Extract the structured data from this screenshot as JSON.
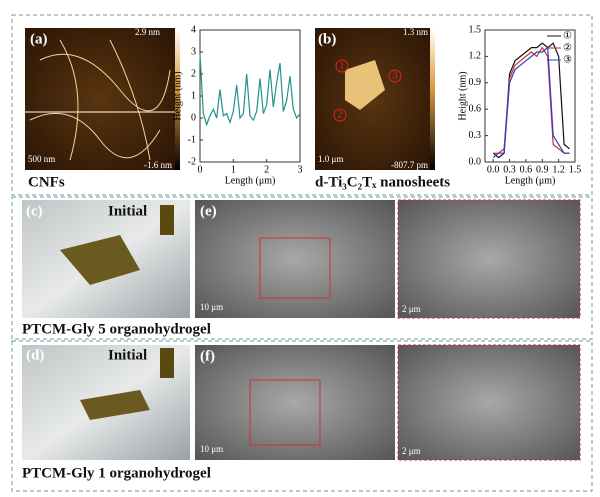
{
  "panels": {
    "a": {
      "label": "(a)",
      "scale_max": "2.9 nm",
      "scale_min": "-1.6 nm",
      "scale_bar": "500 nm",
      "caption": "CNFs"
    },
    "b": {
      "label": "(b)",
      "scale_max": "1.3 nm",
      "scale_min": "-807.7 pm",
      "scale_bar": "1.0 μm",
      "caption": "d-Ti₃C₂Tₓ nanosheets",
      "markers": [
        "1",
        "2",
        "3"
      ]
    },
    "c": {
      "label": "(c)",
      "note": "Initial"
    },
    "e": {
      "label": "(e)",
      "scale_bar": "10 μm",
      "zoom_scale_bar": "2 μm"
    },
    "row2_caption": "PTCM-Gly 5  organohydrogel",
    "d": {
      "label": "(d)",
      "note": "Initial"
    },
    "f": {
      "label": "(f)",
      "scale_bar": "10 μm",
      "zoom_scale_bar": "2 μm"
    },
    "row3_caption": "PTCM-Gly 1  organohydrogel"
  },
  "chart_data": [
    {
      "type": "line",
      "xlabel": "Length (μm)",
      "ylabel": "Height (nm)",
      "x": [
        0,
        0.1,
        0.2,
        0.3,
        0.4,
        0.5,
        0.6,
        0.7,
        0.8,
        0.9,
        1.0,
        1.1,
        1.2,
        1.3,
        1.4,
        1.5,
        1.6,
        1.7,
        1.8,
        1.9,
        2.0,
        2.1,
        2.2,
        2.3,
        2.4,
        2.5,
        2.6,
        2.7,
        2.8,
        2.9,
        3.0
      ],
      "series": [
        {
          "color": "#23928a",
          "values": [
            2.9,
            0.2,
            -0.3,
            0.1,
            0.4,
            0.0,
            1.3,
            0.1,
            0.2,
            -0.2,
            0.3,
            1.5,
            0.0,
            0.2,
            2.0,
            0.1,
            -0.1,
            0.3,
            1.8,
            0.2,
            0.6,
            2.2,
            0.5,
            1.6,
            2.5,
            0.3,
            0.8,
            1.9,
            0.4,
            0.0,
            0.2
          ]
        }
      ],
      "xlim": [
        0,
        3
      ],
      "xticks": [
        0,
        1,
        2,
        3
      ],
      "ylim": [
        -2,
        4
      ],
      "yticks": [
        -2,
        -1,
        0,
        1,
        2,
        3,
        4
      ]
    },
    {
      "type": "line",
      "xlabel": "Length (μm)",
      "ylabel": "Height (nm)",
      "x": [
        0.0,
        0.1,
        0.2,
        0.3,
        0.4,
        0.5,
        0.6,
        0.7,
        0.8,
        0.9,
        1.0,
        1.1,
        1.2,
        1.3,
        1.4
      ],
      "series": [
        {
          "name": "①",
          "color": "#111111",
          "values": [
            0.1,
            0.05,
            0.1,
            1.0,
            1.15,
            1.2,
            1.25,
            1.3,
            1.3,
            1.35,
            1.3,
            1.35,
            1.2,
            0.2,
            0.15
          ]
        },
        {
          "name": "②",
          "color": "#d62728",
          "values": [
            0.1,
            0.1,
            0.15,
            0.95,
            1.1,
            1.15,
            1.2,
            1.25,
            1.2,
            1.3,
            1.2,
            0.2,
            0.15,
            0.1,
            0.1
          ]
        },
        {
          "name": "③",
          "color": "#2b3fc4",
          "values": [
            0.05,
            0.1,
            0.1,
            0.9,
            1.05,
            1.1,
            1.15,
            1.2,
            1.25,
            1.25,
            1.3,
            0.3,
            0.2,
            0.1,
            0.1
          ]
        }
      ],
      "xlim": [
        -0.15,
        1.5
      ],
      "xticks": [
        {
          "value": 0,
          "label": "0.0"
        },
        0.3,
        0.6,
        0.9,
        1.2,
        1.5
      ],
      "ylim": [
        0,
        1.5
      ],
      "yticks": [
        {
          "value": 0,
          "label": "0.0"
        },
        0.3,
        0.6,
        0.9,
        1.2,
        1.5
      ]
    }
  ]
}
